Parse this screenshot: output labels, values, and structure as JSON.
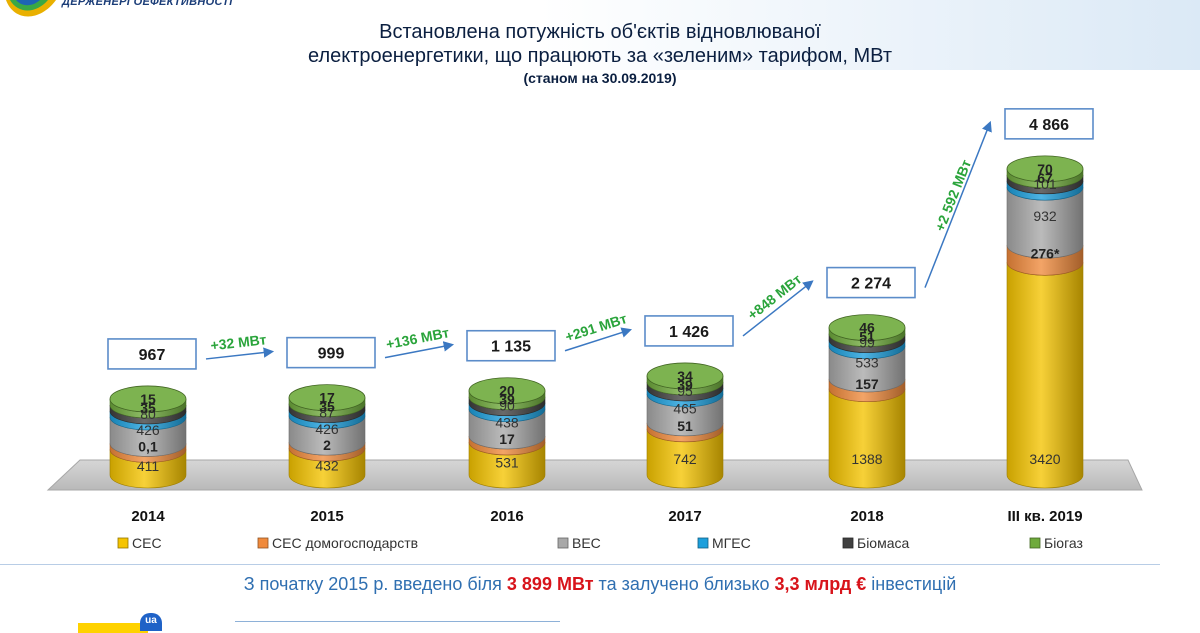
{
  "header": {
    "agency_name": "ДЕРЖЕНЕРГОЕФЕКТИВНОСТІ"
  },
  "title": {
    "line1": "Встановлена потужність об'єктів відновлюваної",
    "line2": "електроенергетики, що працюють за «зеленим» тарифом, МВт",
    "line3": "(станом на 30.09.2019)"
  },
  "chart_data": {
    "type": "bar",
    "stacked": true,
    "categories": [
      "2014",
      "2015",
      "2016",
      "2017",
      "2018",
      "III кв. 2019"
    ],
    "series": [
      {
        "name": "СЕС",
        "color": "#f5c400",
        "values": [
          411,
          432,
          531,
          742,
          1388,
          3420
        ],
        "labels": [
          "411",
          "432",
          "531",
          "742",
          "1388",
          "3420"
        ]
      },
      {
        "name": "СЕС домогосподарств",
        "color": "#f08a3c",
        "values": [
          0.1,
          2,
          17,
          51,
          157,
          276
        ],
        "labels": [
          "0,1",
          "2",
          "17",
          "51",
          "157",
          "276*"
        ]
      },
      {
        "name": "ВЕС",
        "color": "#a8a8a8",
        "values": [
          426,
          426,
          438,
          465,
          533,
          932
        ],
        "labels": [
          "426",
          "426",
          "438",
          "465",
          "533",
          "932"
        ]
      },
      {
        "name": "МГЕС",
        "color": "#1c9fdc",
        "values": [
          80,
          87,
          90,
          95,
          99,
          101
        ],
        "labels": [
          "80",
          "87",
          "90",
          "95",
          "99",
          "101"
        ]
      },
      {
        "name": "Біомаса",
        "color": "#404040",
        "values": [
          35,
          35,
          39,
          39,
          51,
          67
        ],
        "labels": [
          "35",
          "35",
          "39",
          "39",
          "51",
          "67"
        ]
      },
      {
        "name": "Біогаз",
        "color": "#6faa3c",
        "values": [
          15,
          17,
          20,
          34,
          46,
          70
        ],
        "labels": [
          "15",
          "17",
          "20",
          "34",
          "46",
          "70"
        ]
      }
    ],
    "totals": [
      "967",
      "999",
      "1 135",
      "1 426",
      "2 274",
      "4 866"
    ],
    "increments": [
      "+32 МВт",
      "+136 МВт",
      "+291 МВт",
      "+848 МВт",
      "+2 592 МВт"
    ],
    "legend_position": "bottom"
  },
  "note": {
    "prefix": "З початку 2015 р. введено біля",
    "value1": "3 899 МВт",
    "middle": "та залучено близько",
    "value2": "3,3 млрд €",
    "suffix": "інвестицій"
  },
  "footer": {
    "badge": "ua"
  }
}
